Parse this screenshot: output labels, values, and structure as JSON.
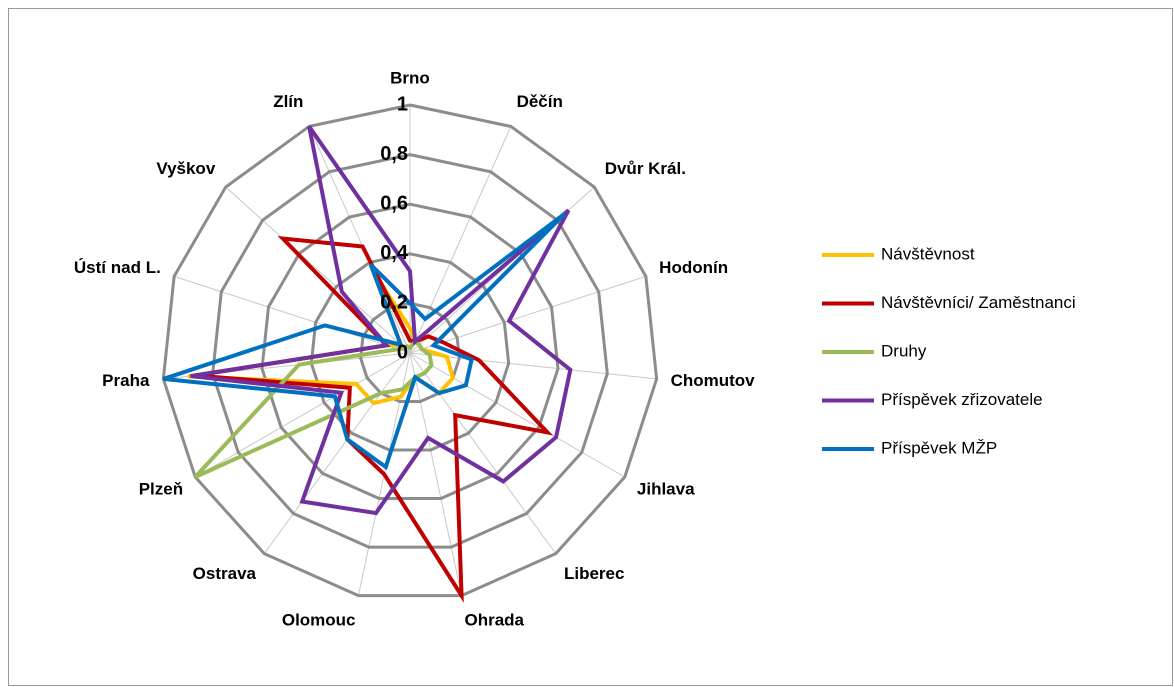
{
  "chart_data": {
    "type": "radar",
    "categories": [
      "Brno",
      "Děčín",
      "Dvůr Král.",
      "Hodonín",
      "Chomutov",
      "Jihlava",
      "Liberec",
      "Ohrada",
      "Olomouc",
      "Ostrava",
      "Plzeň",
      "Praha",
      "Ústí nad L.",
      "Vyškov",
      "Zlín"
    ],
    "ylim": [
      0,
      1
    ],
    "yticks": [
      0,
      {
        "value": 0.2,
        "label": "0,2"
      },
      {
        "value": 0.4,
        "label": "0,4"
      },
      {
        "value": 0.6,
        "label": "0,6"
      },
      {
        "value": 0.8,
        "label": "0,8"
      },
      1
    ],
    "grid": true,
    "legend": "right",
    "series": [
      {
        "name": "Návštěvnost",
        "color": "#ffc000",
        "values": [
          0.1,
          0.05,
          0.05,
          0.05,
          0.15,
          0.2,
          0.2,
          0.1,
          0.18,
          0.25,
          0.25,
          0.9,
          0.1,
          0.05,
          0.35
        ]
      },
      {
        "name": "Návštěvníci/ Zaměstnanci",
        "color": "#c00000",
        "values": [
          0.05,
          0.05,
          0.1,
          0.14,
          0.28,
          0.64,
          0.31,
          1.0,
          0.5,
          0.43,
          0.28,
          0.87,
          0.1,
          0.69,
          0.47
        ]
      },
      {
        "name": "Druhy",
        "color": "#9bbb59",
        "values": [
          0.02,
          0.05,
          0.05,
          0.05,
          0.08,
          0.1,
          0.1,
          0.1,
          0.15,
          0.2,
          1.0,
          0.45,
          0.05,
          0.03,
          0.03
        ]
      },
      {
        "name": "Příspěvek zřizovatele",
        "color": "#7030a0",
        "values": [
          0.33,
          0.05,
          0.86,
          0.42,
          0.65,
          0.68,
          0.64,
          0.35,
          0.66,
          0.74,
          0.32,
          0.89,
          0.1,
          0.37,
          1.0
        ]
      },
      {
        "name": "Příspěvek MŽP",
        "color": "#0070c0",
        "values": [
          0.2,
          0.15,
          0.84,
          0.1,
          0.25,
          0.26,
          0.2,
          0.1,
          0.47,
          0.43,
          0.35,
          1.0,
          0.36,
          0.05,
          0.39
        ]
      }
    ]
  }
}
